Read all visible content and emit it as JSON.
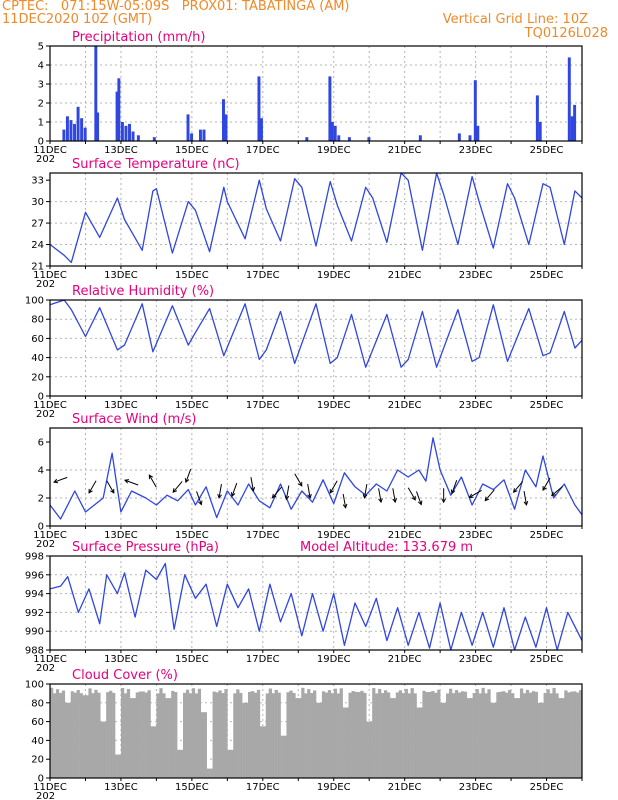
{
  "header": {
    "line1": "CPTEC:   071:15W-05:09S   PROX01: TABATINGA (AM)",
    "line2": "11DEC2020 10Z (GMT)",
    "grid_note": "Vertical Grid Line: 10Z",
    "code": "TQ0126L028"
  },
  "x_labels": [
    "11DEC",
    "13DEC",
    "15DEC",
    "17DEC",
    "19DEC",
    "21DEC",
    "23DEC",
    "25DEC"
  ],
  "x_sub": "202",
  "colors": {
    "line": "#3046e0",
    "bar": "#3046e0",
    "cloud": "#a8a8a8",
    "title": "#e6007e",
    "header": "#ee8a2a"
  },
  "chart_data": [
    {
      "type": "bar",
      "title": "Precipitation (mm/h)",
      "ylim": [
        0,
        5
      ],
      "yticks": [
        0,
        1,
        2,
        3,
        4,
        5
      ],
      "days": 15,
      "events": [
        {
          "d": 0.35,
          "v": 0.6
        },
        {
          "d": 0.45,
          "v": 1.3
        },
        {
          "d": 0.55,
          "v": 1.1
        },
        {
          "d": 0.65,
          "v": 0.9
        },
        {
          "d": 0.75,
          "v": 1.8
        },
        {
          "d": 0.85,
          "v": 1.2
        },
        {
          "d": 0.95,
          "v": 0.7
        },
        {
          "d": 1.25,
          "v": 5.0
        },
        {
          "d": 1.3,
          "v": 1.5
        },
        {
          "d": 1.85,
          "v": 2.6
        },
        {
          "d": 1.9,
          "v": 3.3
        },
        {
          "d": 2.0,
          "v": 1.0
        },
        {
          "d": 2.1,
          "v": 0.8
        },
        {
          "d": 2.2,
          "v": 0.9
        },
        {
          "d": 2.3,
          "v": 0.5
        },
        {
          "d": 2.45,
          "v": 0.3
        },
        {
          "d": 2.9,
          "v": 0.2
        },
        {
          "d": 3.85,
          "v": 1.4
        },
        {
          "d": 3.95,
          "v": 0.4
        },
        {
          "d": 4.2,
          "v": 0.6
        },
        {
          "d": 4.3,
          "v": 0.6
        },
        {
          "d": 4.85,
          "v": 2.2
        },
        {
          "d": 4.92,
          "v": 1.4
        },
        {
          "d": 5.85,
          "v": 3.4
        },
        {
          "d": 5.92,
          "v": 1.2
        },
        {
          "d": 7.2,
          "v": 0.2
        },
        {
          "d": 7.85,
          "v": 3.4
        },
        {
          "d": 7.92,
          "v": 1.0
        },
        {
          "d": 8.0,
          "v": 0.8
        },
        {
          "d": 8.1,
          "v": 0.3
        },
        {
          "d": 8.4,
          "v": 0.2
        },
        {
          "d": 8.95,
          "v": 0.2
        },
        {
          "d": 10.4,
          "v": 0.3
        },
        {
          "d": 11.5,
          "v": 0.4
        },
        {
          "d": 11.8,
          "v": 0.3
        },
        {
          "d": 11.95,
          "v": 3.2
        },
        {
          "d": 12.02,
          "v": 0.8
        },
        {
          "d": 13.7,
          "v": 2.4
        },
        {
          "d": 13.78,
          "v": 1.0
        },
        {
          "d": 14.6,
          "v": 4.4
        },
        {
          "d": 14.68,
          "v": 1.3
        },
        {
          "d": 14.75,
          "v": 1.9
        }
      ]
    },
    {
      "type": "line",
      "title": "Surface Temperature (nC)",
      "ylim": [
        21,
        34
      ],
      "yticks": [
        21,
        24,
        27,
        30,
        33
      ],
      "days": 15,
      "x": [
        0,
        0.4,
        0.6,
        1.0,
        1.4,
        1.9,
        2.1,
        2.6,
        2.9,
        3.0,
        3.45,
        3.9,
        4.1,
        4.5,
        4.9,
        5.0,
        5.5,
        5.9,
        6.1,
        6.5,
        6.9,
        7.1,
        7.5,
        7.9,
        8.1,
        8.5,
        8.9,
        9.1,
        9.5,
        9.9,
        10.1,
        10.5,
        10.9,
        11.1,
        11.5,
        11.9,
        12.1,
        12.5,
        12.9,
        13.1,
        13.5,
        13.9,
        14.1,
        14.5,
        14.8,
        15.0
      ],
      "y": [
        24.0,
        22.5,
        21.5,
        28.5,
        25.0,
        30.5,
        27.5,
        23.2,
        31.5,
        31.8,
        22.8,
        30.0,
        28.8,
        23.0,
        32.0,
        30.0,
        24.8,
        33.0,
        29.0,
        24.5,
        33.2,
        32.0,
        23.8,
        32.8,
        29.5,
        24.5,
        32.0,
        30.5,
        24.3,
        34.0,
        33.0,
        23.2,
        34.0,
        31.0,
        24.0,
        33.5,
        30.0,
        23.5,
        32.5,
        30.5,
        24.0,
        32.5,
        32.0,
        24.0,
        31.5,
        30.5
      ]
    },
    {
      "type": "line",
      "title": "Relative Humidity (%)",
      "ylim": [
        0,
        100
      ],
      "yticks": [
        0,
        20,
        40,
        60,
        80,
        100
      ],
      "days": 15,
      "x": [
        0,
        0.4,
        0.6,
        1.0,
        1.4,
        1.9,
        2.1,
        2.6,
        2.9,
        3.45,
        3.9,
        4.1,
        4.5,
        4.9,
        5.5,
        5.9,
        6.1,
        6.5,
        6.9,
        7.5,
        7.9,
        8.1,
        8.5,
        8.9,
        9.5,
        9.9,
        10.1,
        10.5,
        10.9,
        11.5,
        11.9,
        12.1,
        12.5,
        12.9,
        13.5,
        13.9,
        14.1,
        14.5,
        14.8,
        15.0
      ],
      "y": [
        95,
        100,
        90,
        62,
        92,
        48,
        53,
        96,
        46,
        94,
        53,
        66,
        91,
        42,
        96,
        38,
        48,
        88,
        34,
        96,
        34,
        40,
        85,
        30,
        85,
        30,
        38,
        88,
        30,
        90,
        36,
        40,
        95,
        36,
        91,
        42,
        45,
        88,
        50,
        58
      ]
    },
    {
      "type": "line",
      "title": "Surface Wind (m/s)",
      "ylim": [
        0,
        7
      ],
      "yticks": [
        0,
        2,
        4,
        6
      ],
      "days": 15,
      "x": [
        0,
        0.3,
        0.7,
        1.0,
        1.5,
        1.75,
        1.85,
        2.0,
        2.3,
        2.7,
        3.0,
        3.3,
        3.6,
        3.9,
        4.1,
        4.4,
        4.7,
        5.0,
        5.3,
        5.6,
        5.9,
        6.2,
        6.5,
        6.8,
        7.1,
        7.4,
        7.7,
        8.0,
        8.3,
        8.6,
        8.9,
        9.2,
        9.5,
        9.8,
        10.1,
        10.4,
        10.6,
        10.8,
        11.0,
        11.3,
        11.6,
        11.9,
        12.2,
        12.5,
        12.8,
        13.1,
        13.4,
        13.7,
        13.9,
        14.2,
        14.5,
        14.8,
        15.0
      ],
      "y": [
        1.5,
        0.5,
        2.5,
        1.0,
        2.0,
        5.2,
        3.5,
        1.0,
        2.5,
        2.0,
        1.5,
        2.2,
        1.8,
        2.6,
        1.5,
        2.8,
        0.6,
        2.5,
        1.5,
        3.0,
        1.8,
        1.3,
        3.0,
        1.2,
        2.5,
        1.7,
        3.3,
        1.6,
        3.8,
        2.8,
        2.2,
        3.0,
        2.5,
        4.0,
        3.5,
        4.0,
        3.2,
        6.3,
        4.0,
        2.2,
        3.5,
        1.5,
        3.0,
        2.6,
        3.3,
        1.2,
        4.0,
        2.8,
        5.0,
        2.0,
        3.0,
        1.5,
        0.8
      ],
      "arrows": [
        {
          "d": 0.3,
          "y": 3.3,
          "ang": 200
        },
        {
          "d": 1.2,
          "y": 2.8,
          "ang": 240
        },
        {
          "d": 1.7,
          "y": 2.8,
          "ang": 300
        },
        {
          "d": 2.3,
          "y": 3.1,
          "ang": 160
        },
        {
          "d": 2.9,
          "y": 3.2,
          "ang": 120
        },
        {
          "d": 3.6,
          "y": 2.8,
          "ang": 230
        },
        {
          "d": 3.9,
          "y": 3.6,
          "ang": 250
        },
        {
          "d": 4.2,
          "y": 2.0,
          "ang": 290
        },
        {
          "d": 4.8,
          "y": 2.5,
          "ang": 260
        },
        {
          "d": 5.2,
          "y": 2.6,
          "ang": 250
        },
        {
          "d": 5.7,
          "y": 3.0,
          "ang": 280
        },
        {
          "d": 6.4,
          "y": 2.4,
          "ang": 230
        },
        {
          "d": 6.7,
          "y": 2.4,
          "ang": 260
        },
        {
          "d": 7.0,
          "y": 3.3,
          "ang": 300
        },
        {
          "d": 7.3,
          "y": 2.5,
          "ang": 280
        },
        {
          "d": 8.0,
          "y": 2.8,
          "ang": 240
        },
        {
          "d": 8.3,
          "y": 1.8,
          "ang": 280
        },
        {
          "d": 8.9,
          "y": 2.5,
          "ang": 260
        },
        {
          "d": 9.3,
          "y": 2.2,
          "ang": 280
        },
        {
          "d": 9.7,
          "y": 2.2,
          "ang": 280
        },
        {
          "d": 10.2,
          "y": 2.3,
          "ang": 300
        },
        {
          "d": 10.4,
          "y": 2.0,
          "ang": 290
        },
        {
          "d": 11.1,
          "y": 2.2,
          "ang": 270
        },
        {
          "d": 11.4,
          "y": 2.8,
          "ang": 250
        },
        {
          "d": 12.0,
          "y": 2.3,
          "ang": 210
        },
        {
          "d": 12.4,
          "y": 2.2,
          "ang": 230
        },
        {
          "d": 13.2,
          "y": 2.8,
          "ang": 230
        },
        {
          "d": 13.4,
          "y": 2.0,
          "ang": 280
        },
        {
          "d": 14.0,
          "y": 3.0,
          "ang": 240
        },
        {
          "d": 14.3,
          "y": 2.5,
          "ang": 220
        }
      ]
    },
    {
      "type": "line",
      "title": "Surface Pressure (hPa)",
      "subtitle": "Model Altitude: 133.679  m",
      "ylim": [
        988,
        998
      ],
      "yticks": [
        988,
        990,
        992,
        994,
        996,
        998
      ],
      "days": 15,
      "x": [
        0,
        0.3,
        0.5,
        0.8,
        1.1,
        1.4,
        1.6,
        1.9,
        2.1,
        2.4,
        2.7,
        3.0,
        3.25,
        3.5,
        3.8,
        4.1,
        4.4,
        4.7,
        5.0,
        5.3,
        5.6,
        5.9,
        6.2,
        6.5,
        6.8,
        7.1,
        7.4,
        7.7,
        8.0,
        8.3,
        8.6,
        8.9,
        9.2,
        9.5,
        9.8,
        10.1,
        10.4,
        10.7,
        11.0,
        11.3,
        11.6,
        11.9,
        12.2,
        12.5,
        12.8,
        13.1,
        13.4,
        13.7,
        14.0,
        14.3,
        14.6,
        15.0
      ],
      "y": [
        994.5,
        994.8,
        995.8,
        992.0,
        994.5,
        990.8,
        996.0,
        994.0,
        996.2,
        991.5,
        996.5,
        995.5,
        997.2,
        990.2,
        996.0,
        993.5,
        995.0,
        990.5,
        995.0,
        992.5,
        994.5,
        990.0,
        995.0,
        991.0,
        994.0,
        989.5,
        994.0,
        990.0,
        994.0,
        988.5,
        993.0,
        990.5,
        993.5,
        989.0,
        992.5,
        988.5,
        992.0,
        988.2,
        993.0,
        988.0,
        992.0,
        988.5,
        992.0,
        988.3,
        992.5,
        988.0,
        991.5,
        988.3,
        992.5,
        988.0,
        992.0,
        989.0
      ]
    },
    {
      "type": "bar",
      "title": "Cloud Cover (%)",
      "ylim": [
        0,
        100
      ],
      "yticks": [
        0,
        20,
        40,
        60,
        80,
        100
      ],
      "days": 15,
      "bins": 180,
      "dips": [
        {
          "d": 0.5,
          "v": 80
        },
        {
          "d": 1.0,
          "v": 88
        },
        {
          "d": 1.5,
          "v": 60
        },
        {
          "d": 1.9,
          "v": 25
        },
        {
          "d": 2.3,
          "v": 85
        },
        {
          "d": 2.9,
          "v": 55
        },
        {
          "d": 3.3,
          "v": 85
        },
        {
          "d": 3.7,
          "v": 30
        },
        {
          "d": 4.3,
          "v": 70
        },
        {
          "d": 4.5,
          "v": 10
        },
        {
          "d": 5.1,
          "v": 30
        },
        {
          "d": 5.5,
          "v": 80
        },
        {
          "d": 6.0,
          "v": 55
        },
        {
          "d": 6.6,
          "v": 45
        },
        {
          "d": 7.0,
          "v": 85
        },
        {
          "d": 7.6,
          "v": 80
        },
        {
          "d": 8.3,
          "v": 75
        },
        {
          "d": 9.0,
          "v": 60
        },
        {
          "d": 9.7,
          "v": 85
        },
        {
          "d": 10.4,
          "v": 75
        },
        {
          "d": 11.1,
          "v": 80
        },
        {
          "d": 11.8,
          "v": 85
        },
        {
          "d": 12.5,
          "v": 80
        },
        {
          "d": 13.2,
          "v": 85
        },
        {
          "d": 13.8,
          "v": 80
        },
        {
          "d": 14.4,
          "v": 85
        }
      ]
    }
  ]
}
